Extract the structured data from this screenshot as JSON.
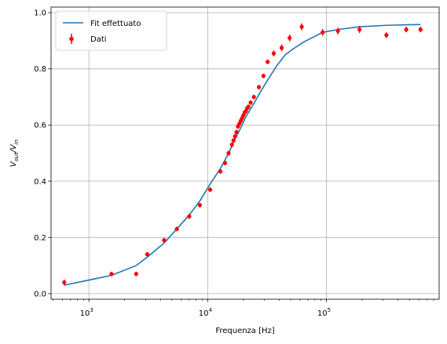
{
  "chart_data": {
    "type": "scatter",
    "xlabel": "Frequenza [Hz]",
    "ylabel": "V_out/V_in",
    "xscale": "log",
    "xlim": [
      480,
      890000
    ],
    "ylim": [
      -0.02,
      1.02
    ],
    "grid": true,
    "legend_position": "top-left",
    "x_ticks": [
      {
        "value": 1000,
        "base": "10",
        "exp": "3"
      },
      {
        "value": 10000,
        "base": "10",
        "exp": "4"
      },
      {
        "value": 100000,
        "base": "10",
        "exp": "5"
      }
    ],
    "y_ticks": [
      "0.0",
      "0.2",
      "0.4",
      "0.6",
      "0.8",
      "1.0"
    ],
    "series": [
      {
        "name": "Fit effettuato",
        "kind": "line",
        "color": "#1f77b4",
        "x": [
          620,
          1550,
          2500,
          3100,
          4300,
          5500,
          7000,
          8600,
          10500,
          13000,
          15000,
          17000,
          19000,
          21000,
          24000,
          28000,
          32000,
          38000,
          45000,
          52000,
          64000,
          93000,
          125000,
          190000,
          320000,
          470000,
          620000
        ],
        "y": [
          0.03,
          0.065,
          0.1,
          0.13,
          0.18,
          0.23,
          0.28,
          0.33,
          0.39,
          0.45,
          0.5,
          0.55,
          0.59,
          0.63,
          0.67,
          0.72,
          0.76,
          0.81,
          0.85,
          0.87,
          0.895,
          0.93,
          0.94,
          0.95,
          0.955,
          0.957,
          0.958
        ]
      },
      {
        "name": "Dati",
        "kind": "errorbar",
        "color": "#ff0000",
        "x": [
          620,
          1550,
          2500,
          3100,
          4300,
          5500,
          7000,
          8600,
          10500,
          12800,
          14000,
          15000,
          16000,
          16500,
          17000,
          17500,
          18000,
          18500,
          19000,
          19500,
          20000,
          20500,
          21000,
          21500,
          22000,
          23000,
          24500,
          27000,
          29500,
          32000,
          36000,
          42000,
          49000,
          62000,
          93000,
          125000,
          190000,
          320000,
          470000,
          620000
        ],
        "y": [
          0.04,
          0.07,
          0.07,
          0.14,
          0.19,
          0.23,
          0.275,
          0.315,
          0.37,
          0.435,
          0.465,
          0.5,
          0.53,
          0.545,
          0.56,
          0.575,
          0.595,
          0.605,
          0.615,
          0.625,
          0.635,
          0.645,
          0.65,
          0.66,
          0.665,
          0.68,
          0.7,
          0.735,
          0.775,
          0.825,
          0.855,
          0.875,
          0.91,
          0.95,
          0.93,
          0.935,
          0.94,
          0.92,
          0.94,
          0.94
        ],
        "err": [
          0.01,
          0.008,
          0.008,
          0.008,
          0.008,
          0.008,
          0.008,
          0.008,
          0.008,
          0.008,
          0.008,
          0.008,
          0.008,
          0.008,
          0.008,
          0.008,
          0.008,
          0.008,
          0.008,
          0.008,
          0.008,
          0.008,
          0.008,
          0.008,
          0.008,
          0.008,
          0.008,
          0.008,
          0.008,
          0.008,
          0.01,
          0.012,
          0.012,
          0.012,
          0.012,
          0.012,
          0.012,
          0.01,
          0.01,
          0.01
        ]
      }
    ]
  }
}
